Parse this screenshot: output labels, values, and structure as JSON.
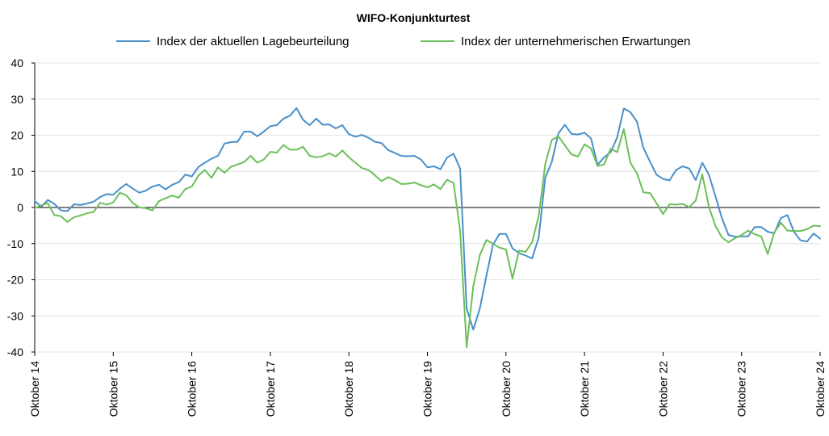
{
  "chart_data": {
    "type": "line",
    "title": "WIFO-Konjunkturtest",
    "xlabel": "",
    "ylabel": "",
    "ylim": [
      -40,
      40
    ],
    "yticks": [
      -40,
      -30,
      -20,
      -10,
      0,
      10,
      20,
      30,
      40
    ],
    "grid": true,
    "legend_position": "top",
    "x_tick_labels": [
      "Oktober 14",
      "Oktober 15",
      "Oktober 16",
      "Oktober 17",
      "Oktober 18",
      "Oktober 19",
      "Oktober 20",
      "Oktober 21",
      "Oktober 22",
      "Oktober 23",
      "Oktober 24"
    ],
    "x_start": "2014-10",
    "x_end": "2024-10",
    "series": [
      {
        "name": "Index der aktuellen Lagebeurteilung",
        "color": "#4a90c8",
        "values": [
          1.8,
          0.2,
          2.1,
          1.0,
          -0.8,
          -1.0,
          0.9,
          0.7,
          1.1,
          1.6,
          2.9,
          3.7,
          3.5,
          5.2,
          6.5,
          5.2,
          4.1,
          4.7,
          5.8,
          6.3,
          5.0,
          6.3,
          7.0,
          9.1,
          8.6,
          11.2,
          12.4,
          13.5,
          14.3,
          17.7,
          18.1,
          18.2,
          21.0,
          21.0,
          19.7,
          21.0,
          22.5,
          22.8,
          24.6,
          25.4,
          27.5,
          24.3,
          22.8,
          24.6,
          22.9,
          23.0,
          21.9,
          22.8,
          20.3,
          19.6,
          20.1,
          19.3,
          18.2,
          17.8,
          15.9,
          15.1,
          14.3,
          14.2,
          14.3,
          13.3,
          11.1,
          11.4,
          10.6,
          13.8,
          14.9,
          10.8,
          -28.0,
          -33.8,
          -28.0,
          -19.0,
          -10.4,
          -7.3,
          -7.3,
          -11.3,
          -12.6,
          -13.3,
          -14.1,
          -8.4,
          8.3,
          12.6,
          20.5,
          22.9,
          20.4,
          20.2,
          20.7,
          19.1,
          11.8,
          13.9,
          15.3,
          19.4,
          27.4,
          26.4,
          23.8,
          16.5,
          12.7,
          9.1,
          7.9,
          7.5,
          10.4,
          11.4,
          10.8,
          7.6,
          12.4,
          9.1,
          3.1,
          -3.0,
          -7.6,
          -8.1,
          -8.0,
          -8.0,
          -5.4,
          -5.4,
          -6.7,
          -7.1,
          -2.9,
          -2.1,
          -6.7,
          -9.1,
          -9.4,
          -7.2,
          -8.6
        ]
      },
      {
        "name": "Index der unternehmerischen Erwartungen",
        "color": "#6bbf5a",
        "values": [
          -0.2,
          0.6,
          1.2,
          -2.1,
          -2.4,
          -4.0,
          -2.7,
          -2.2,
          -1.6,
          -1.2,
          1.3,
          0.8,
          1.4,
          4.1,
          3.4,
          1.2,
          0.0,
          -0.2,
          -0.8,
          1.8,
          2.6,
          3.3,
          2.7,
          5.1,
          5.8,
          8.8,
          10.4,
          8.2,
          11.1,
          9.6,
          11.3,
          11.9,
          12.6,
          14.3,
          12.4,
          13.3,
          15.4,
          15.2,
          17.3,
          16.0,
          16.0,
          16.8,
          14.3,
          13.9,
          14.2,
          15.0,
          14.1,
          15.8,
          13.9,
          12.4,
          10.9,
          10.4,
          8.9,
          7.3,
          8.4,
          7.6,
          6.5,
          6.6,
          6.9,
          6.2,
          5.6,
          6.4,
          5.1,
          7.7,
          6.8,
          -6.5,
          -38.7,
          -21.8,
          -13.2,
          -9.0,
          -10.0,
          -11.1,
          -11.6,
          -19.7,
          -11.9,
          -12.3,
          -9.6,
          -2.4,
          12.0,
          18.7,
          19.7,
          17.2,
          14.7,
          14.1,
          17.5,
          16.3,
          11.5,
          11.9,
          16.3,
          15.3,
          21.7,
          12.4,
          9.5,
          4.2,
          4.0,
          1.2,
          -1.8,
          0.9,
          0.8,
          1.0,
          0.1,
          1.9,
          9.2,
          0.2,
          -5.1,
          -8.3,
          -9.6,
          -8.5,
          -7.6,
          -6.4,
          -7.4,
          -8.0,
          -12.9,
          -6.9,
          -4.2,
          -6.4,
          -6.5,
          -6.5,
          -6.0,
          -5.0,
          -5.2
        ]
      }
    ]
  }
}
